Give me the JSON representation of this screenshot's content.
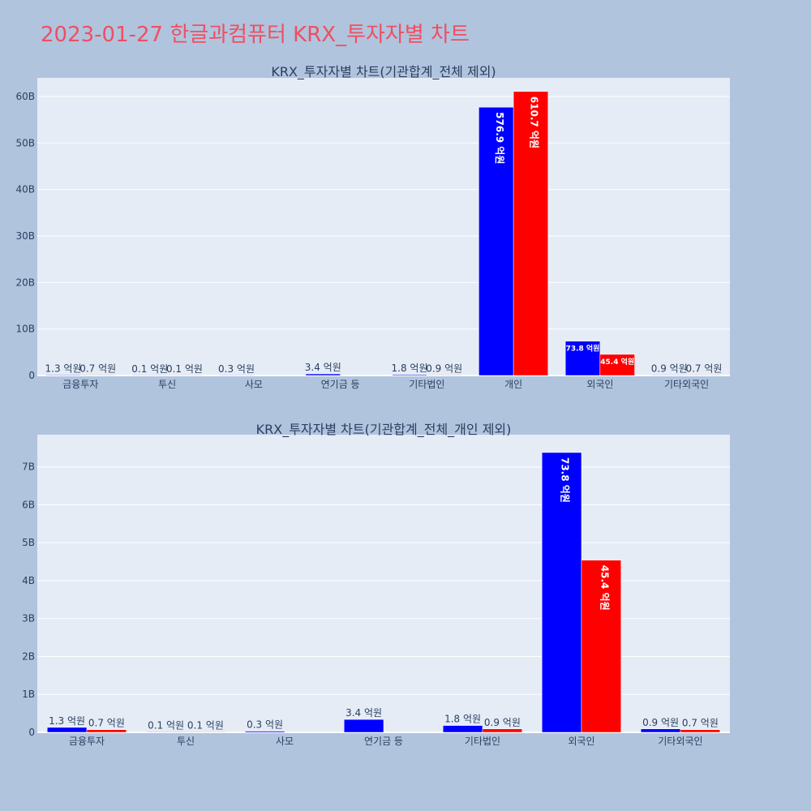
{
  "page": {
    "title": "2023-01-27 한글과컴퓨터 KRX_투자자별 차트",
    "background": "#b0c4de",
    "plot_background": "#e5ecf6",
    "title_color": "#ef4f61"
  },
  "chart_data": [
    {
      "type": "bar",
      "title": "KRX_투자자별 차트(기관합계_전체 제외)",
      "categories": [
        "금융투자",
        "투신",
        "사모",
        "연기금 등",
        "기타법인",
        "개인",
        "외국인",
        "기타외국인"
      ],
      "series": [
        {
          "color": "#0000ff",
          "values": [
            0.13,
            0.01,
            0.03,
            0.34,
            0.18,
            57.69,
            7.38,
            0.09
          ],
          "labels": [
            "1.3 억원",
            "0.1 억원",
            "0.3 억원",
            "3.4 억원",
            "1.8 억원",
            "576.9 억원",
            "73.8 억원",
            "0.9 억원"
          ]
        },
        {
          "color": "#ff0000",
          "values": [
            0.07,
            0.01,
            null,
            null,
            0.09,
            61.07,
            4.54,
            0.07
          ],
          "labels": [
            "0.7 억원",
            "0.1 억원",
            "",
            "",
            "0.9 억원",
            "610.7 억원",
            "45.4 억원",
            "0.7 억원"
          ]
        }
      ],
      "yticks": [
        "0",
        "10B",
        "20B",
        "30B",
        "40B",
        "50B",
        "60B"
      ],
      "ylim": [
        0,
        64
      ],
      "grid": true,
      "legend": false
    },
    {
      "type": "bar",
      "title": "KRX_투자자별 차트(기관합계_전체_개인 제외)",
      "categories": [
        "금융투자",
        "투신",
        "사모",
        "연기금 등",
        "기타법인",
        "외국인",
        "기타외국인"
      ],
      "series": [
        {
          "color": "#0000ff",
          "values": [
            0.13,
            0.01,
            0.03,
            0.34,
            0.18,
            7.38,
            0.09
          ],
          "labels": [
            "1.3 억원",
            "0.1 억원",
            "0.3 억원",
            "3.4 억원",
            "1.8 억원",
            "73.8 억원",
            "0.9 억원"
          ]
        },
        {
          "color": "#ff0000",
          "values": [
            0.07,
            0.01,
            null,
            null,
            0.09,
            4.54,
            0.07
          ],
          "labels": [
            "0.7 억원",
            "0.1 억원",
            "",
            "",
            "0.9 억원",
            "45.4 억원",
            "0.7 억원"
          ]
        }
      ],
      "yticks": [
        "0",
        "1B",
        "2B",
        "3B",
        "4B",
        "5B",
        "6B",
        "7B"
      ],
      "ylim": [
        0,
        7.85
      ],
      "grid": true,
      "legend": false
    }
  ]
}
